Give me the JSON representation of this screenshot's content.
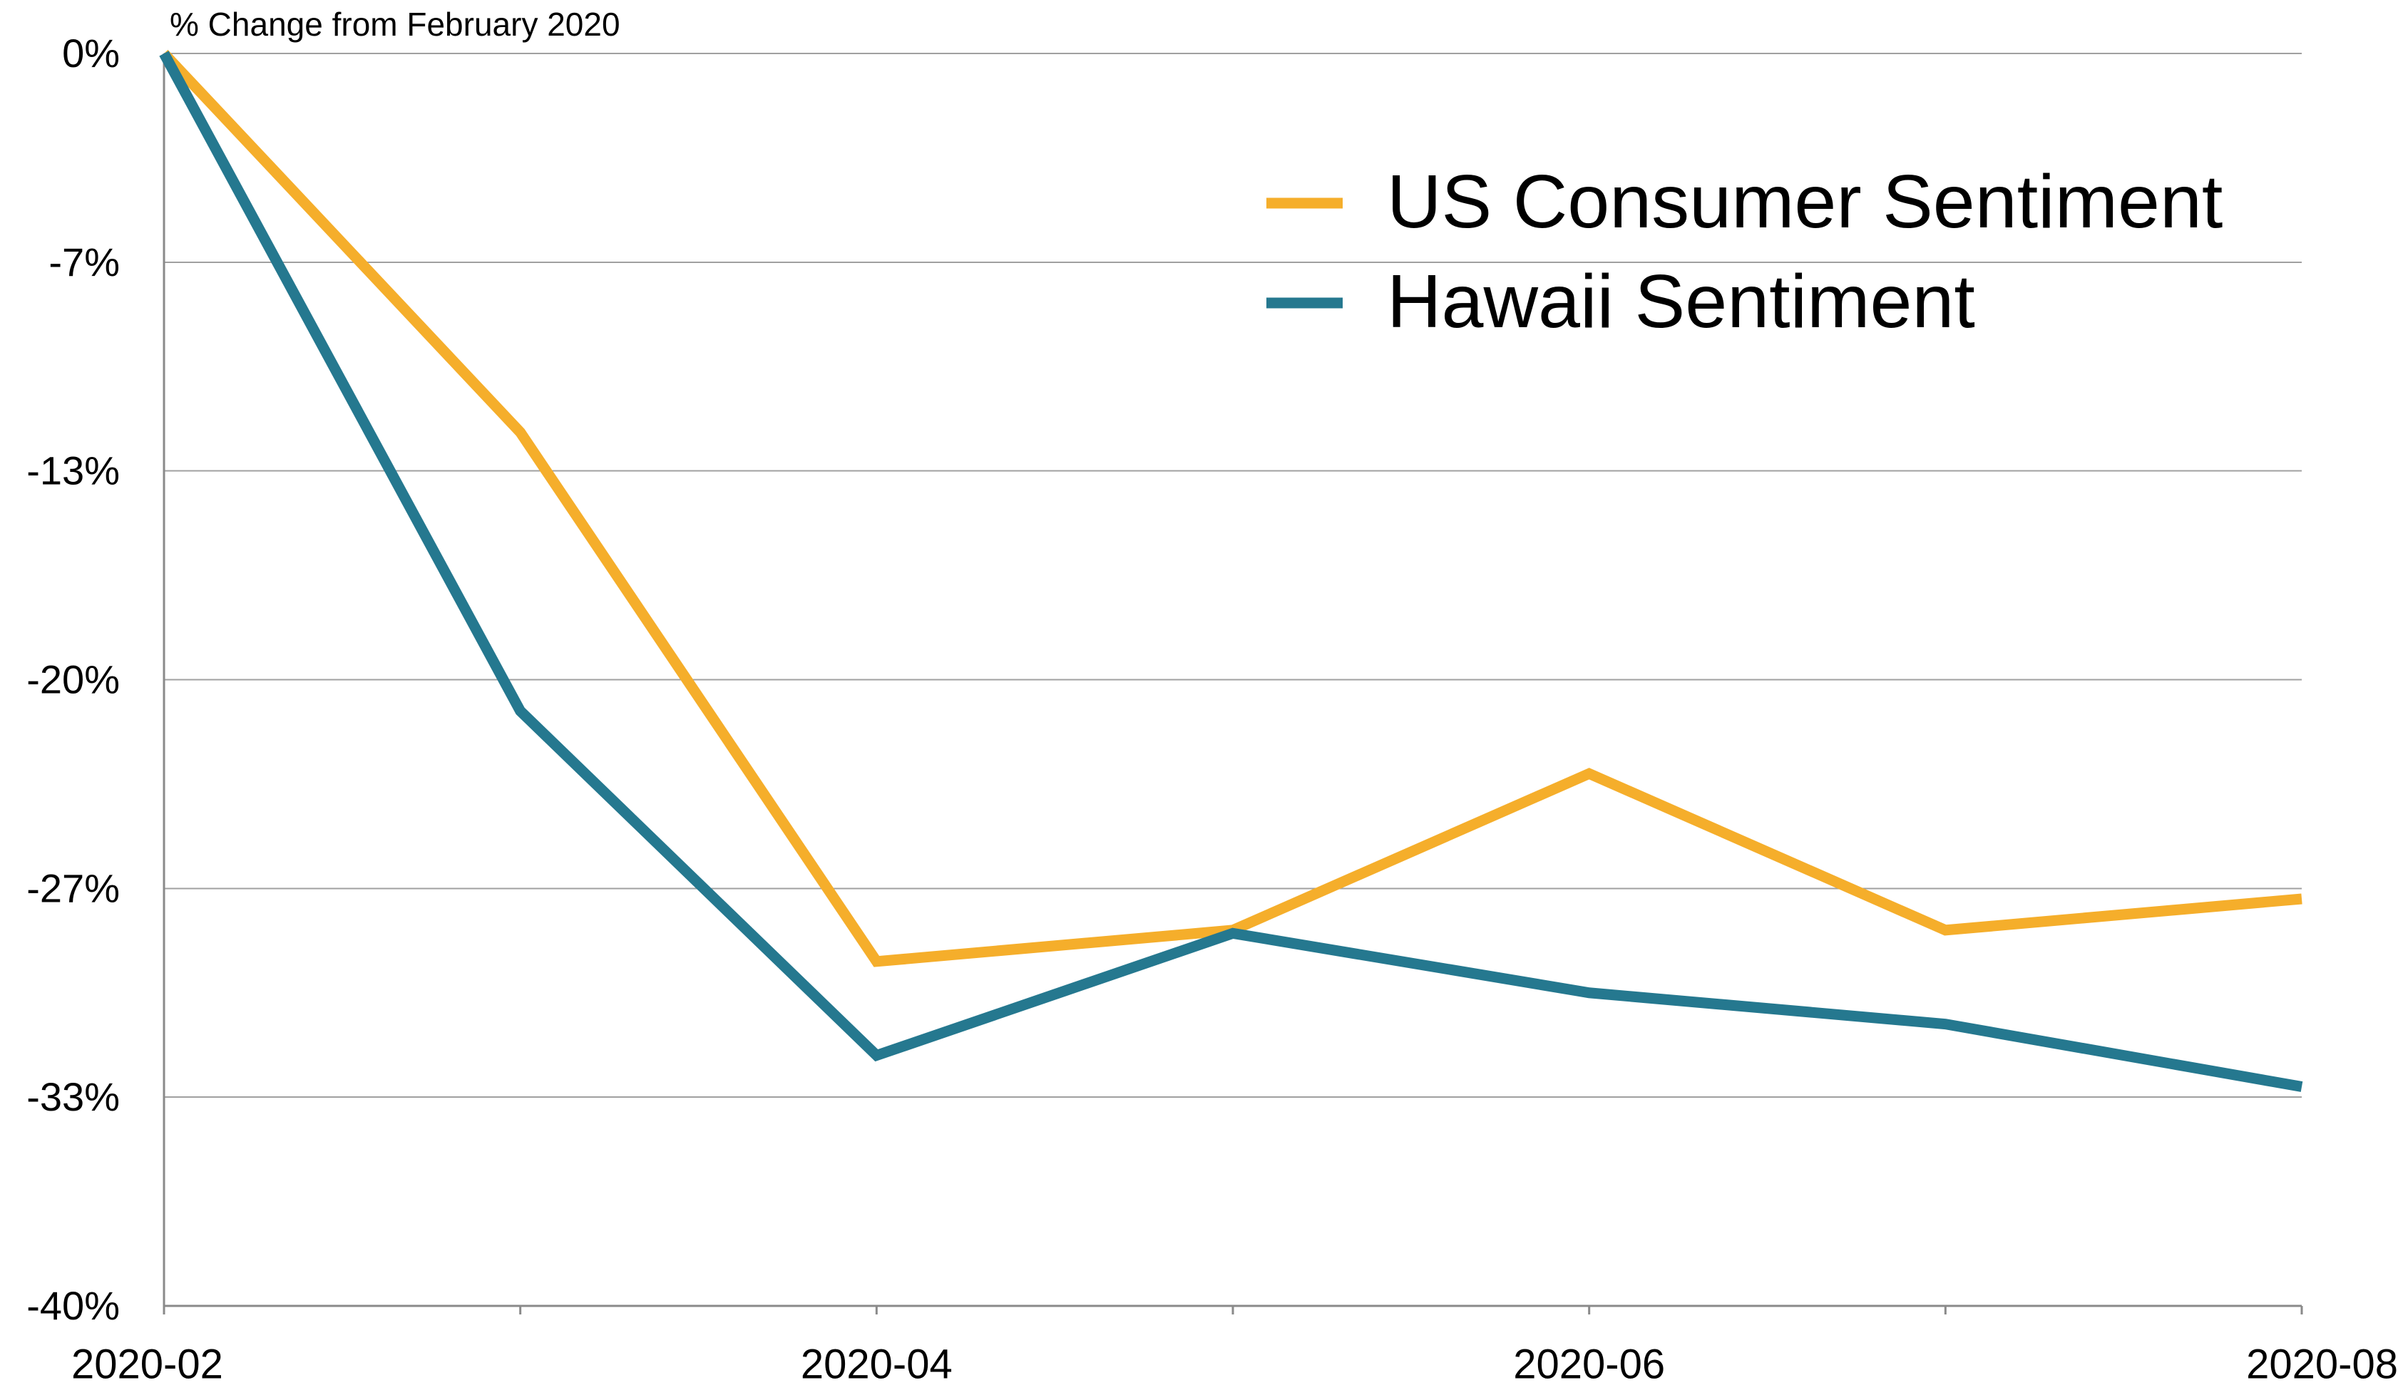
{
  "chart_data": {
    "type": "line",
    "y_axis_label": "% Change from February 2020",
    "categories": [
      "2020-02",
      null,
      "2020-04",
      null,
      "2020-06",
      null,
      "2020-08"
    ],
    "series": [
      {
        "name": "US Consumer Sentiment",
        "color": "#f5ae2b",
        "values": [
          0,
          -12.1,
          -29.0,
          -28.0,
          -23.0,
          -28.0,
          -27.0
        ]
      },
      {
        "name": "Hawaii Sentiment",
        "color": "#25788f",
        "values": [
          0,
          -21.0,
          -32.0,
          -28.1,
          -30.0,
          -31.0,
          -33.0
        ]
      }
    ],
    "ylim": [
      -40,
      0
    ],
    "yticks": [
      {
        "value": 0,
        "label": "0%"
      },
      {
        "value": -6.67,
        "label": "-7%"
      },
      {
        "value": -13.33,
        "label": "-13%"
      },
      {
        "value": -20,
        "label": "-20%"
      },
      {
        "value": -26.67,
        "label": "-27%"
      },
      {
        "value": -33.33,
        "label": "-33%"
      },
      {
        "value": -40,
        "label": "-40%"
      }
    ],
    "grid": true,
    "legend": "upper right"
  }
}
